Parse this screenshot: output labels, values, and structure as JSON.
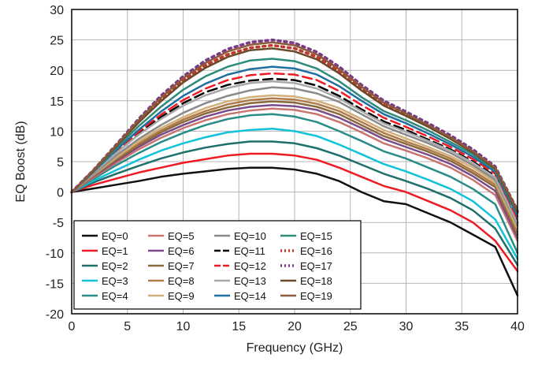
{
  "chart_data": {
    "type": "line",
    "title": "",
    "xlabel": "Frequency (GHz)",
    "ylabel": "EQ Boost (dB)",
    "xlim": [
      0,
      40
    ],
    "ylim": [
      -20,
      30
    ],
    "xticks": [
      "0",
      "5",
      "10",
      "15",
      "20",
      "25",
      "30",
      "35",
      "40"
    ],
    "yticks": [
      "30",
      "25",
      "20",
      "15",
      "10",
      "5",
      "0",
      "-5",
      "-10",
      "-15",
      "-20"
    ],
    "grid": true,
    "legend_position": "bottom-left",
    "x": [
      0,
      2,
      4,
      6,
      8,
      10,
      12,
      14,
      16,
      18,
      20,
      22,
      24,
      26,
      28,
      30,
      32,
      34,
      36,
      38,
      40
    ],
    "series": [
      {
        "name": "EQ=0",
        "color": "#111111",
        "dash": "",
        "values": [
          0,
          0.6,
          1.2,
          1.8,
          2.5,
          3,
          3.4,
          3.8,
          4,
          4,
          3.7,
          3.0,
          1.8,
          0.0,
          -1.5,
          -2.0,
          -3.5,
          -5.0,
          -7.0,
          -9.0,
          -17.0
        ]
      },
      {
        "name": "EQ=1",
        "color": "#ee1b24",
        "dash": "",
        "values": [
          0,
          1.2,
          2.2,
          3.2,
          4.0,
          4.8,
          5.4,
          6.0,
          6.3,
          6.3,
          6.0,
          5.3,
          4.0,
          2.5,
          1.0,
          0.0,
          -1.5,
          -3.0,
          -5.0,
          -8.0,
          -13.0
        ]
      },
      {
        "name": "EQ=2",
        "color": "#1f6f6b",
        "dash": "",
        "values": [
          0,
          1.6,
          3.0,
          4.3,
          5.5,
          6.5,
          7.3,
          7.9,
          8.3,
          8.3,
          8.0,
          7.2,
          6.0,
          4.5,
          3.0,
          1.8,
          0.5,
          -1.0,
          -3.0,
          -6.0,
          -12.0
        ]
      },
      {
        "name": "EQ=3",
        "color": "#12c2d9",
        "dash": "",
        "values": [
          0,
          1.9,
          3.6,
          5.3,
          6.8,
          8.0,
          9.0,
          9.8,
          10.2,
          10.4,
          10.0,
          9.2,
          7.8,
          6.2,
          4.6,
          3.4,
          2.0,
          0.5,
          -1.5,
          -4.5,
          -11.0
        ]
      },
      {
        "name": "EQ=4",
        "color": "#2a8c87",
        "dash": "",
        "values": [
          0,
          2.2,
          4.4,
          6.4,
          8.2,
          9.7,
          11.0,
          12.0,
          12.6,
          12.8,
          12.4,
          11.5,
          10.0,
          8.4,
          6.7,
          5.5,
          4.0,
          2.5,
          0.5,
          -2.0,
          -10.0
        ]
      },
      {
        "name": "EQ=5",
        "color": "#c8746f",
        "dash": "",
        "values": [
          0,
          2.4,
          4.8,
          7.0,
          8.9,
          10.5,
          11.8,
          12.8,
          13.4,
          13.7,
          13.5,
          12.8,
          11.5,
          9.8,
          8.0,
          6.8,
          5.5,
          4.0,
          2.0,
          -0.5,
          -8.0
        ]
      },
      {
        "name": "EQ=6",
        "color": "#7a4a8c",
        "dash": "",
        "values": [
          0,
          2.6,
          5.1,
          7.4,
          9.4,
          11.0,
          12.4,
          13.4,
          14.0,
          14.3,
          14.1,
          13.5,
          12.2,
          10.5,
          8.7,
          7.4,
          6.1,
          4.6,
          2.6,
          0.2,
          -7.5
        ]
      },
      {
        "name": "EQ=7",
        "color": "#8a6a3a",
        "dash": "",
        "values": [
          0,
          2.7,
          5.3,
          7.7,
          9.8,
          11.5,
          12.9,
          13.9,
          14.6,
          14.9,
          14.7,
          14.0,
          12.8,
          11.0,
          9.2,
          7.9,
          6.6,
          5.1,
          3.1,
          0.8,
          -7.0
        ]
      },
      {
        "name": "EQ=8",
        "color": "#b07a4a",
        "dash": "",
        "values": [
          0,
          2.8,
          5.5,
          8.0,
          10.1,
          11.9,
          13.3,
          14.4,
          15.1,
          15.4,
          15.2,
          14.5,
          13.3,
          11.5,
          9.7,
          8.3,
          7.0,
          5.5,
          3.5,
          1.2,
          -6.5
        ]
      },
      {
        "name": "EQ=9",
        "color": "#d1b07a",
        "dash": "",
        "values": [
          0,
          2.9,
          5.7,
          8.3,
          10.5,
          12.3,
          13.8,
          14.9,
          15.6,
          15.9,
          15.7,
          15.0,
          13.8,
          12.0,
          10.2,
          8.8,
          7.4,
          5.9,
          4.0,
          1.6,
          -6.0
        ]
      },
      {
        "name": "EQ=10",
        "color": "#8a8a8a",
        "dash": "",
        "values": [
          0,
          3.0,
          6.0,
          8.7,
          11.0,
          13.0,
          14.6,
          15.8,
          16.7,
          17.2,
          17.0,
          16.2,
          14.8,
          12.8,
          10.8,
          9.4,
          8.0,
          6.4,
          4.4,
          2.0,
          -5.5
        ]
      },
      {
        "name": "EQ=11",
        "color": "#000000",
        "dash": "12,6",
        "values": [
          0,
          3.2,
          6.5,
          9.6,
          12.3,
          14.6,
          16.4,
          17.6,
          18.3,
          18.6,
          18.4,
          17.5,
          15.8,
          13.6,
          11.6,
          10.2,
          8.6,
          7.0,
          5.0,
          2.6,
          -5.0
        ]
      },
      {
        "name": "EQ=12",
        "color": "#ee1b24",
        "dash": "12,6",
        "values": [
          0,
          3.3,
          6.7,
          9.9,
          12.7,
          15.1,
          17.0,
          18.4,
          19.2,
          19.5,
          19.3,
          18.4,
          16.6,
          14.3,
          12.2,
          10.7,
          9.1,
          7.4,
          5.4,
          3.0,
          -4.5
        ]
      },
      {
        "name": "EQ=13",
        "color": "#a8a8a8",
        "dash": "",
        "values": [
          0,
          3.2,
          6.4,
          9.4,
          12.0,
          14.2,
          15.9,
          17.1,
          17.9,
          18.2,
          17.9,
          17.0,
          15.4,
          13.3,
          11.3,
          9.9,
          8.4,
          6.8,
          4.8,
          2.4,
          -5.2
        ]
      },
      {
        "name": "EQ=14",
        "color": "#1f6fa0",
        "dash": "",
        "values": [
          0,
          3.4,
          6.9,
          10.2,
          13.2,
          15.8,
          17.8,
          19.3,
          20.2,
          20.6,
          20.3,
          19.3,
          17.4,
          15.0,
          12.8,
          11.3,
          9.6,
          7.8,
          5.8,
          3.3,
          -4.0
        ]
      },
      {
        "name": "EQ=15",
        "color": "#2e8b7a",
        "dash": "",
        "values": [
          0,
          3.5,
          7.2,
          10.8,
          14.0,
          16.8,
          19.0,
          20.6,
          21.6,
          21.9,
          21.5,
          20.3,
          18.2,
          15.6,
          13.3,
          11.8,
          10.1,
          8.2,
          6.2,
          3.6,
          -3.5
        ]
      },
      {
        "name": "EQ=16",
        "color": "#c0392b",
        "dash": "3,5",
        "values": [
          0,
          3.6,
          7.6,
          11.6,
          15.2,
          18.3,
          20.8,
          22.6,
          23.7,
          24.1,
          23.6,
          22.2,
          19.9,
          17.0,
          14.5,
          12.8,
          11.0,
          9.0,
          6.8,
          4.0,
          -3.2
        ]
      },
      {
        "name": "EQ=17",
        "color": "#7a3a8a",
        "dash": "3,5",
        "values": [
          0,
          3.7,
          7.8,
          12.0,
          15.8,
          19.0,
          21.6,
          23.5,
          24.6,
          25.0,
          24.5,
          23.0,
          20.6,
          17.6,
          15.0,
          13.2,
          11.3,
          9.3,
          7.0,
          4.2,
          -3.0
        ]
      },
      {
        "name": "EQ=18",
        "color": "#6b4a2a",
        "dash": "",
        "values": [
          0,
          3.6,
          7.5,
          11.4,
          14.9,
          18.0,
          20.4,
          22.2,
          23.3,
          23.6,
          23.1,
          21.8,
          19.5,
          16.7,
          14.2,
          12.5,
          10.7,
          8.7,
          6.5,
          3.8,
          -3.3
        ]
      },
      {
        "name": "EQ=19",
        "color": "#8a5a3a",
        "dash": "",
        "values": [
          0,
          3.7,
          7.7,
          11.8,
          15.5,
          18.7,
          21.2,
          23.1,
          24.2,
          24.6,
          24.1,
          22.6,
          20.2,
          17.3,
          14.7,
          12.9,
          11.0,
          9.0,
          6.7,
          4.0,
          -3.0
        ]
      }
    ]
  }
}
